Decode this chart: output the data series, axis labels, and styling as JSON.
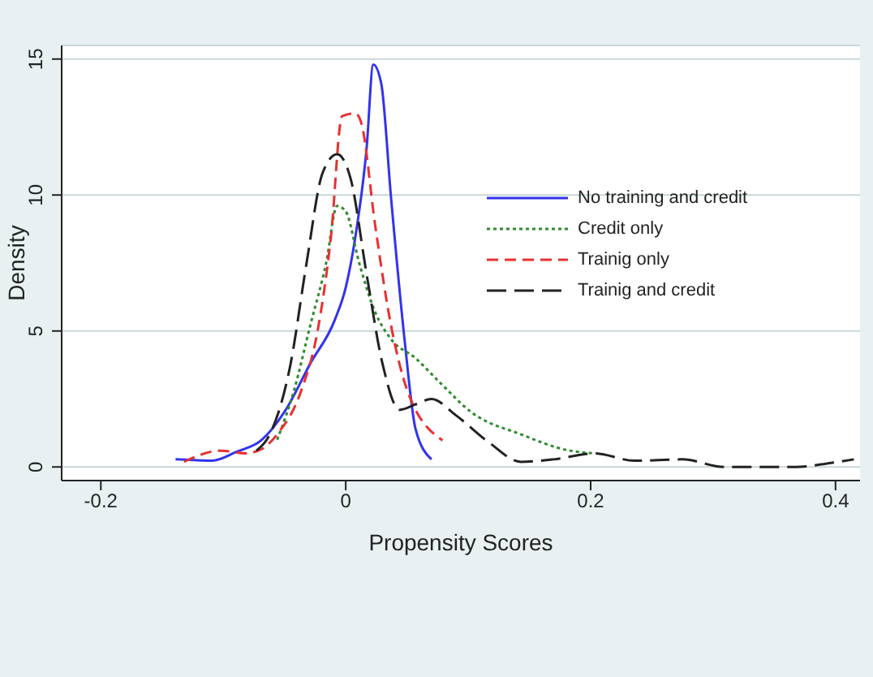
{
  "chart_data": {
    "type": "line",
    "xlabel": "Propensity Scores",
    "ylabel": "Density",
    "xlim": [
      -0.232,
      0.42
    ],
    "ylim": [
      -0.5,
      15.5
    ],
    "xticks": [
      -0.2,
      0,
      0.2,
      0.4
    ],
    "yticks": [
      0,
      5,
      10,
      15
    ],
    "grid": "y",
    "legend": "top right",
    "marker": "none",
    "series": [
      {
        "name": "No training and credit",
        "color": "#3333ee",
        "line_style": "solid",
        "x": [
          -0.139,
          -0.109,
          -0.089,
          -0.069,
          -0.049,
          -0.029,
          -0.009,
          0,
          0.008,
          0.017,
          0.0225,
          0.029,
          0.037,
          0.048,
          0.057,
          0.07
        ],
        "values": [
          0.28,
          0.23,
          0.56,
          0.98,
          2.1,
          3.8,
          5.4,
          6.6,
          8.5,
          11.7,
          14.8,
          14.1,
          9.9,
          4.7,
          1.4,
          0.28
        ]
      },
      {
        "name": "Credit only",
        "color": "#2e8b2e",
        "line_style": "dotted",
        "x": [
          -0.056,
          -0.042,
          -0.029,
          -0.016,
          -0.007,
          0,
          0.011,
          0.024,
          0.037,
          0.057,
          0.077,
          0.103,
          0.143,
          0.183,
          0.203
        ],
        "values": [
          1.0,
          2.85,
          5.2,
          7.5,
          9.6,
          9.4,
          7.5,
          5.7,
          4.7,
          4.0,
          3.1,
          2.0,
          1.2,
          0.6,
          0.5
        ]
      },
      {
        "name": "Trainig only",
        "color": "#e83030",
        "line_style": "dashed",
        "x": [
          -0.132,
          -0.102,
          -0.082,
          -0.069,
          -0.056,
          -0.036,
          -0.023,
          -0.012,
          -0.003,
          0.008,
          0.013,
          0.024,
          0.037,
          0.05,
          0.079
        ],
        "values": [
          0.19,
          0.6,
          0.5,
          0.65,
          1.2,
          2.85,
          5,
          8.5,
          12.9,
          13,
          12.6,
          8.9,
          5.2,
          2.85,
          0.98
        ]
      },
      {
        "name": "Trainig and credit",
        "color": "#222222",
        "line_style": "dashed",
        "x": [
          -0.073,
          -0.062,
          -0.045,
          -0.032,
          -0.019,
          -0.007,
          0.004,
          0.017,
          0.03,
          0.044,
          0.057,
          0.07,
          0.09,
          0.117,
          0.143,
          0.17,
          0.203,
          0.236,
          0.275,
          0.309,
          0.368,
          0.395,
          0.415
        ],
        "values": [
          0.6,
          1.2,
          3.8,
          7.5,
          10.8,
          11.5,
          10.6,
          7.1,
          3.8,
          2.1,
          2.3,
          2.5,
          1.9,
          0.9,
          0.19,
          0.28,
          0.5,
          0.23,
          0.28,
          0,
          0,
          0.14,
          0.28
        ]
      }
    ]
  }
}
